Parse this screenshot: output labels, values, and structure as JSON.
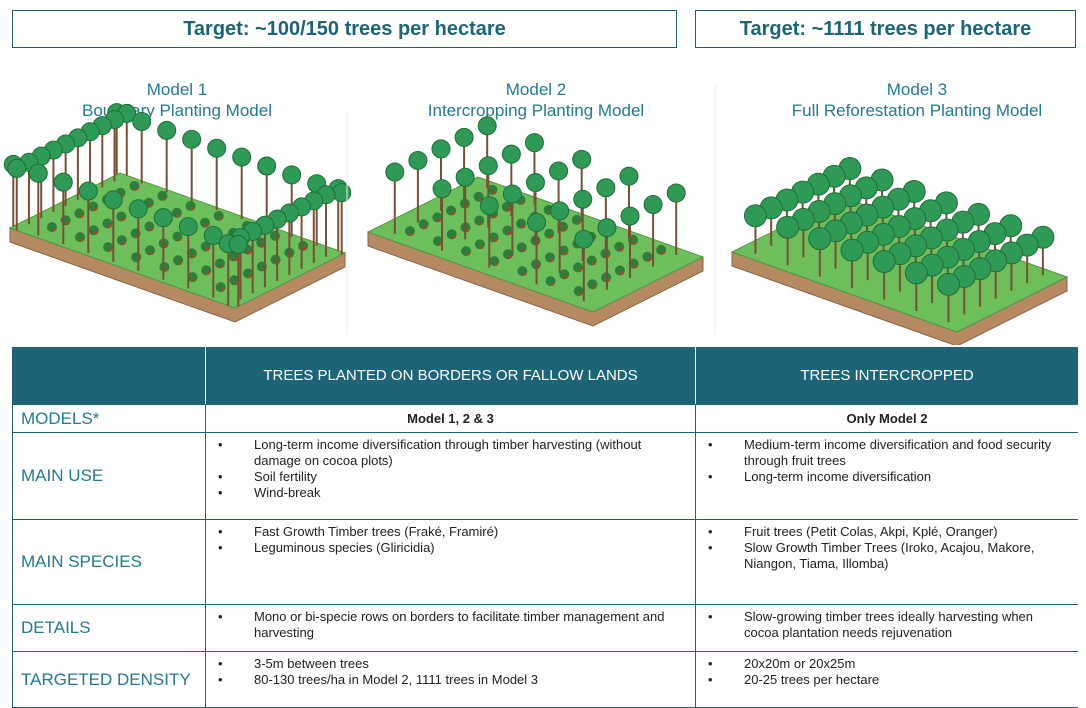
{
  "targets": [
    "Target: ~100/150 trees per hectare",
    "Target: ~1111 trees per hectare"
  ],
  "models": [
    {
      "number": "Model 1",
      "name": "Boundary Planting Model"
    },
    {
      "number": "Model 2",
      "name": "Intercropping Planting Model"
    },
    {
      "number": "Model 3",
      "name": "Full Reforestation Planting Model"
    }
  ],
  "table": {
    "header": [
      "TREES PLANTED ON BORDERS OR FALLOW LANDS",
      "TREES INTERCROPPED"
    ],
    "rows": [
      {
        "label": "MODELS*",
        "cells": [
          "Model 1, 2 & 3",
          "Only Model 2"
        ]
      },
      {
        "label": "MAIN USE",
        "cells": [
          [
            "Long-term income diversification through timber harvesting (without damage on cocoa plots)",
            "Soil fertility",
            "Wind-break"
          ],
          [
            "Medium-term income diversification and food security through fruit trees",
            "Long-term income diversification"
          ]
        ]
      },
      {
        "label": "MAIN SPECIES",
        "cells": [
          [
            "Fast Growth Timber trees (Fraké, Framiré)",
            "Leguminous species (Gliricidia)"
          ],
          [
            "Fruit trees (Petit Colas, Akpi, Kplé, Oranger)",
            "Slow Growth Timber Trees (Iroko, Acajou, Makore, Niangon, Tiama, Illomba)"
          ]
        ]
      },
      {
        "label": "DETAILS",
        "cells": [
          [
            "Mono or bi-specie rows on borders to facilitate timber management and harvesting"
          ],
          [
            "Slow-growing timber trees ideally harvesting when cocoa plantation needs rejuvenation"
          ]
        ]
      },
      {
        "label": "TARGETED DENSITY",
        "cells": [
          [
            "3-5m between trees",
            "80-130 trees/ha in Model 2, 1111 trees in Model 3"
          ],
          [
            "20x20m or 20x25m",
            "20-25 trees per hectare"
          ]
        ]
      }
    ]
  }
}
